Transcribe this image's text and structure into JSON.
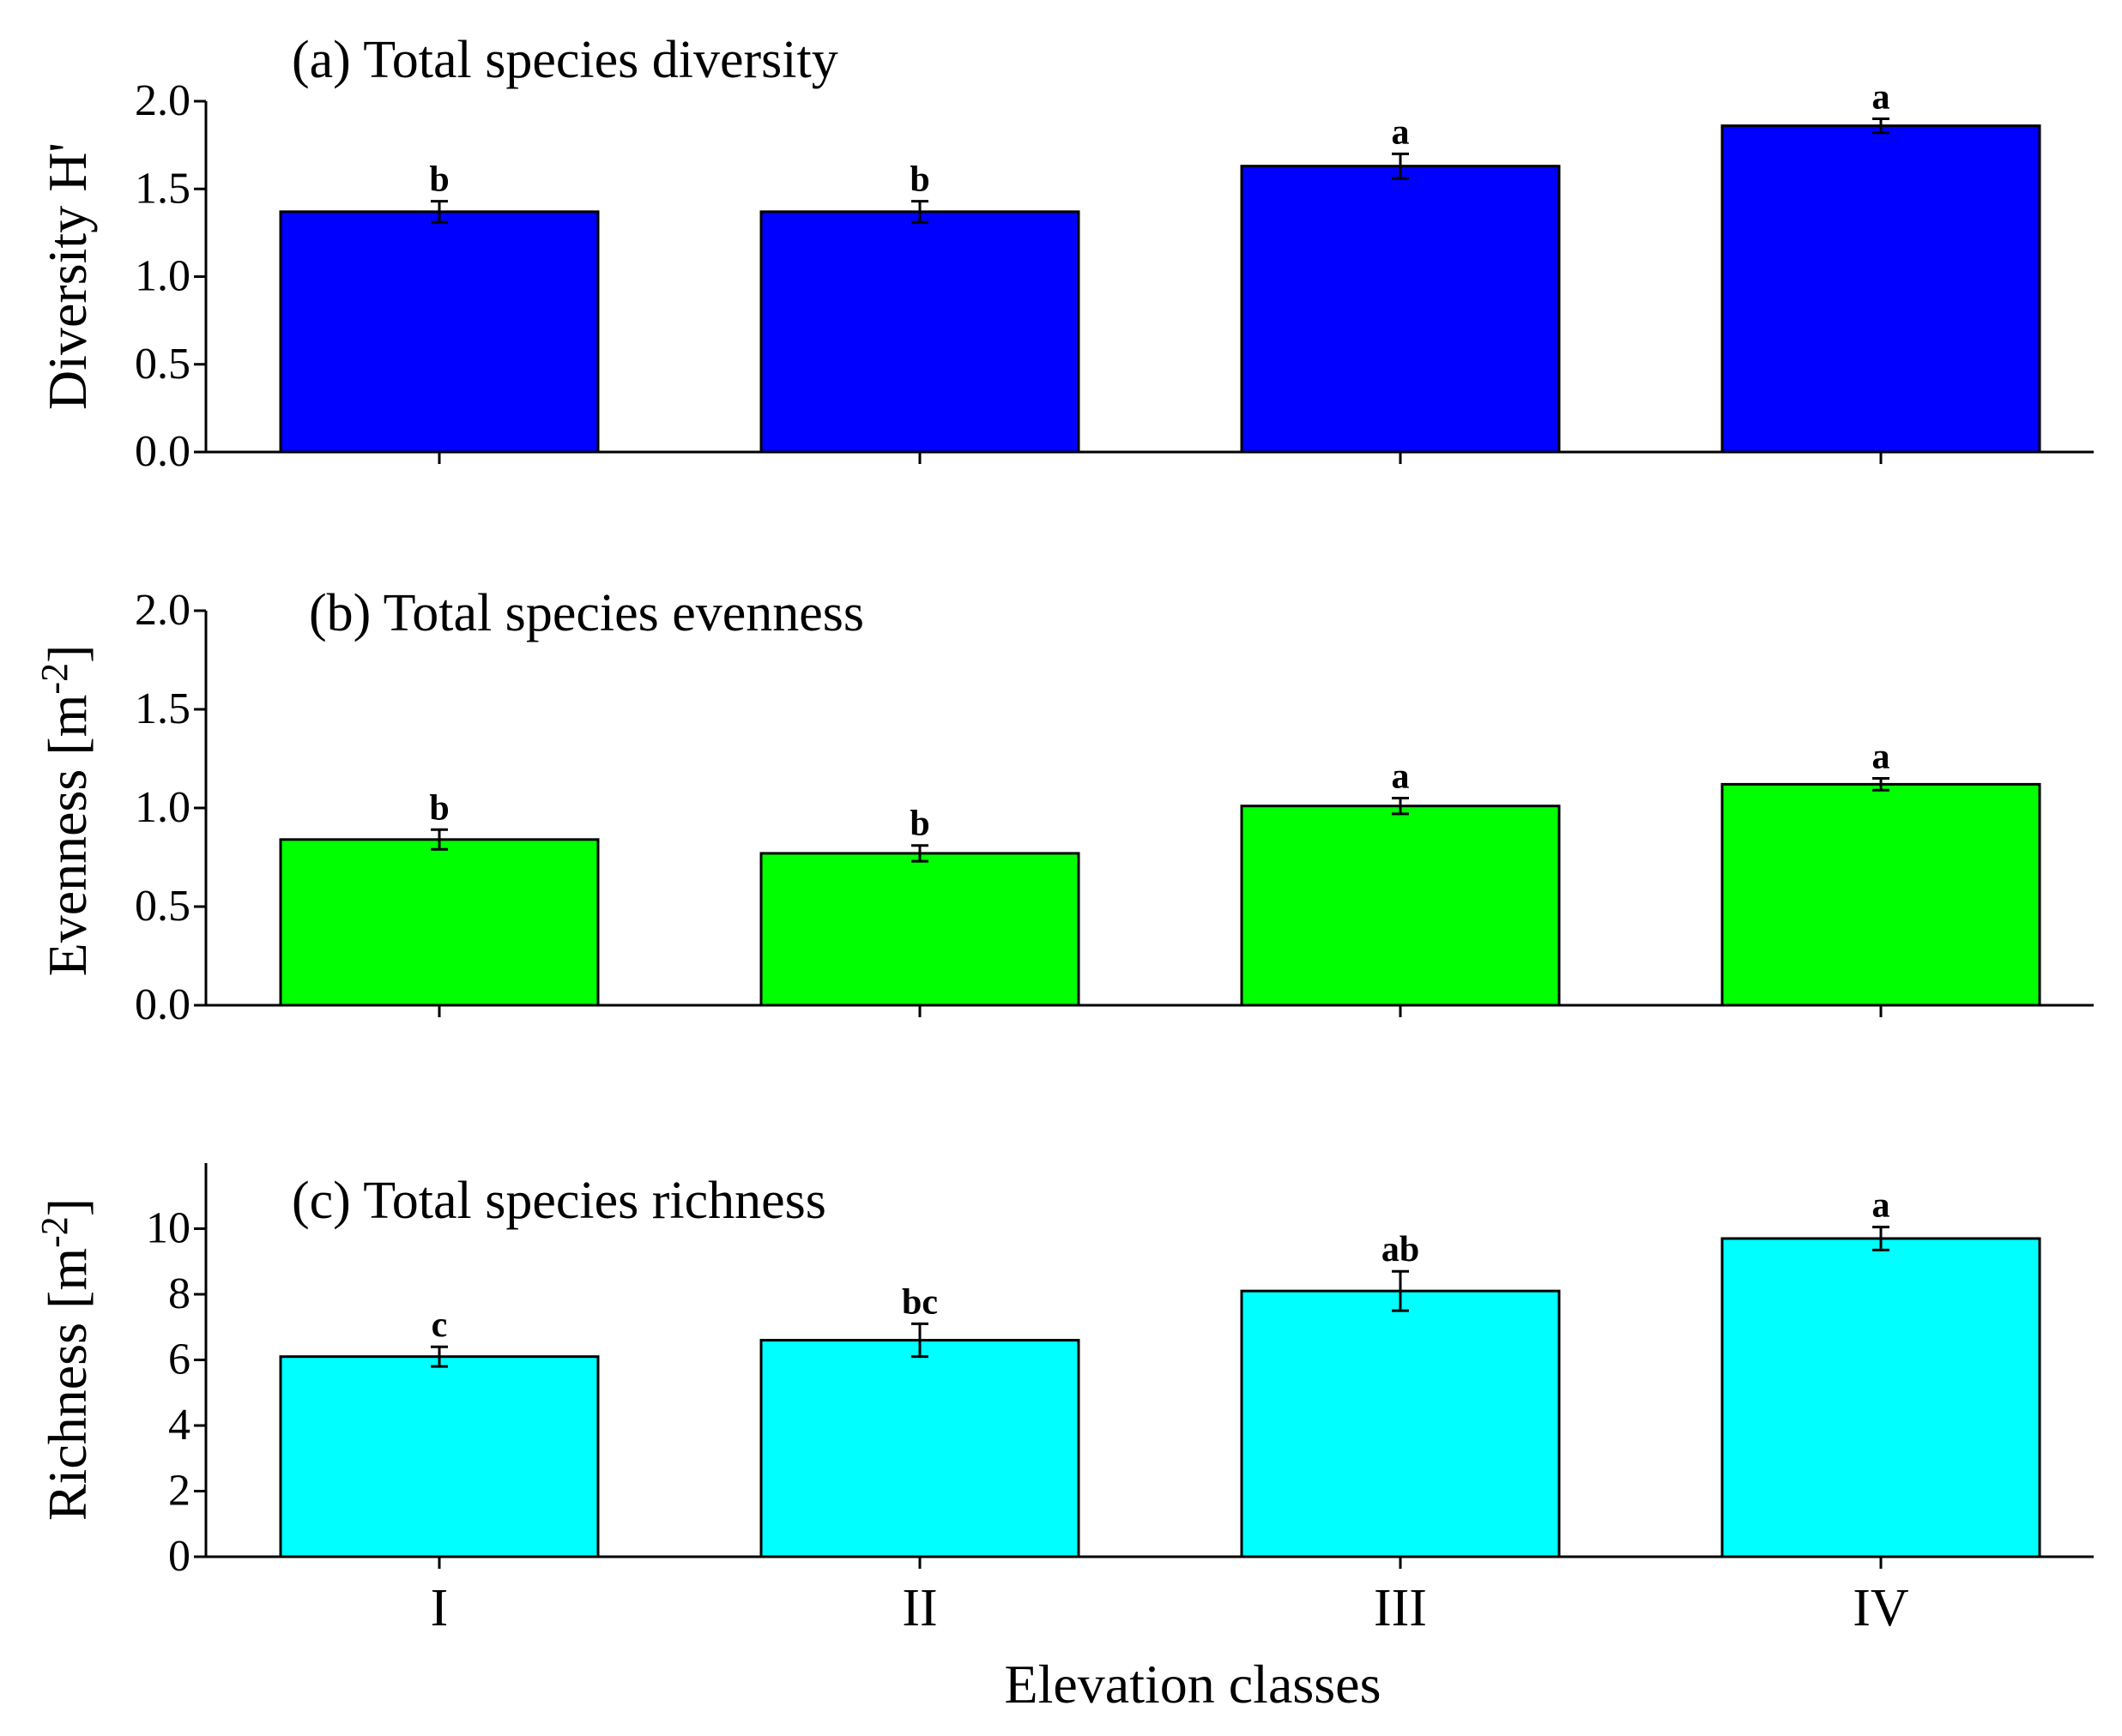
{
  "xlabel": "Elevation classes",
  "chart_data": [
    {
      "type": "bar",
      "title": "(a) Total species diversity",
      "ylabel": "Diversity H'",
      "ylabel_sup": "",
      "ylabel_close": "",
      "categories": [
        "I",
        "II",
        "III",
        "IV"
      ],
      "values": [
        1.37,
        1.37,
        1.63,
        1.86
      ],
      "errors": [
        0.06,
        0.06,
        0.07,
        0.04
      ],
      "significance": [
        "b",
        "b",
        "a",
        "a"
      ],
      "ylim": [
        0,
        2.0
      ],
      "yticks": [
        0,
        0.5,
        1.0,
        1.5,
        2.0
      ],
      "ytick_labels": [
        "0.0",
        "0.5",
        "1.0",
        "1.5",
        "2.0"
      ],
      "color": "#0000ff"
    },
    {
      "type": "bar",
      "title": "(b) Total species evenness",
      "ylabel": "Evenness [m",
      "ylabel_sup": "-2",
      "ylabel_close": "]",
      "categories": [
        "I",
        "II",
        "III",
        "IV"
      ],
      "values": [
        0.84,
        0.77,
        1.01,
        1.12
      ],
      "errors": [
        0.05,
        0.04,
        0.04,
        0.03
      ],
      "significance": [
        "b",
        "b",
        "a",
        "a"
      ],
      "ylim": [
        0,
        2.0
      ],
      "yticks": [
        0,
        0.5,
        1.0,
        1.5,
        2.0
      ],
      "ytick_labels": [
        "0.0",
        "0.5",
        "1.0",
        "1.5",
        "2.0"
      ],
      "color": "#00ff00"
    },
    {
      "type": "bar",
      "title": "(c) Total species richness",
      "ylabel": "Richness [m",
      "ylabel_sup": "-2",
      "ylabel_close": "]",
      "categories": [
        "I",
        "II",
        "III",
        "IV"
      ],
      "values": [
        6.1,
        6.6,
        8.1,
        9.7
      ],
      "errors": [
        0.3,
        0.5,
        0.6,
        0.35
      ],
      "significance": [
        "c",
        "bc",
        "ab",
        "a"
      ],
      "ylim": [
        0,
        12
      ],
      "yticks": [
        0,
        2,
        4,
        6,
        8,
        10
      ],
      "ytick_labels": [
        "0",
        "2",
        "4",
        "6",
        "8",
        "10"
      ],
      "color": "#00ffff"
    }
  ]
}
